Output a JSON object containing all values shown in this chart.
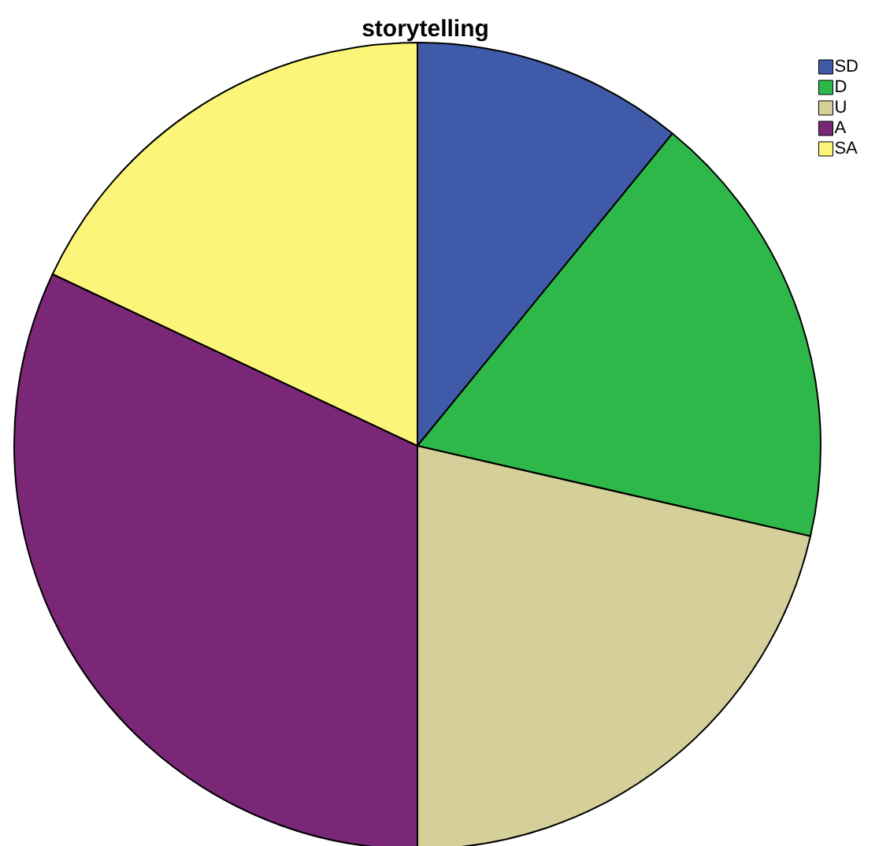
{
  "chart_data": {
    "type": "pie",
    "title": "storytelling",
    "categories": [
      "SD",
      "D",
      "U",
      "A",
      "SA"
    ],
    "values": [
      10.9,
      17.7,
      21.4,
      32.0,
      18.0
    ],
    "colors": [
      "#3f5aa8",
      "#2fb84a",
      "#d5cf9a",
      "#7a2778",
      "#fbf57a"
    ],
    "legend": "top right"
  }
}
